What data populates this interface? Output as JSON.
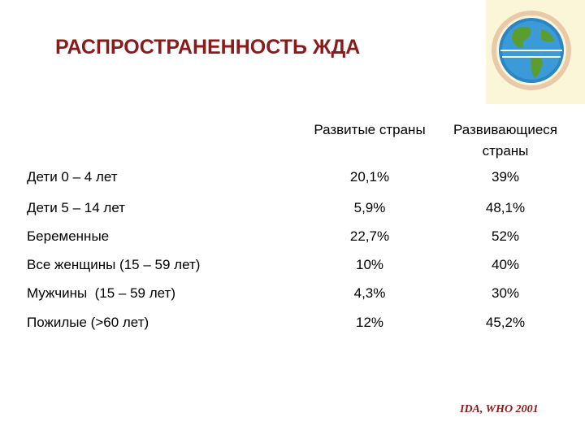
{
  "header": {
    "title": "РАСПРОСТРАНЕННОСТЬ ЖДА"
  },
  "table": {
    "columns": [
      "Развитые страны",
      "Развивающиеся страны"
    ],
    "rows": [
      [
        "Дети 0 – 4 лет",
        "20,1%",
        "39%"
      ],
      [
        "Дети 5 – 14 лет",
        "5,9%",
        "48,1%"
      ],
      [
        "Беременные",
        "22,7%",
        "52%"
      ],
      [
        "Все женщины (15 – 59 лет)",
        "10%",
        "40%"
      ],
      [
        "Мужчины  (15 – 59 лет)",
        "4,3%",
        "30%"
      ],
      [
        "Пожилые (>60 лет)",
        "12%",
        "45,2%"
      ]
    ]
  },
  "source": "IDA, WHO 2001"
}
